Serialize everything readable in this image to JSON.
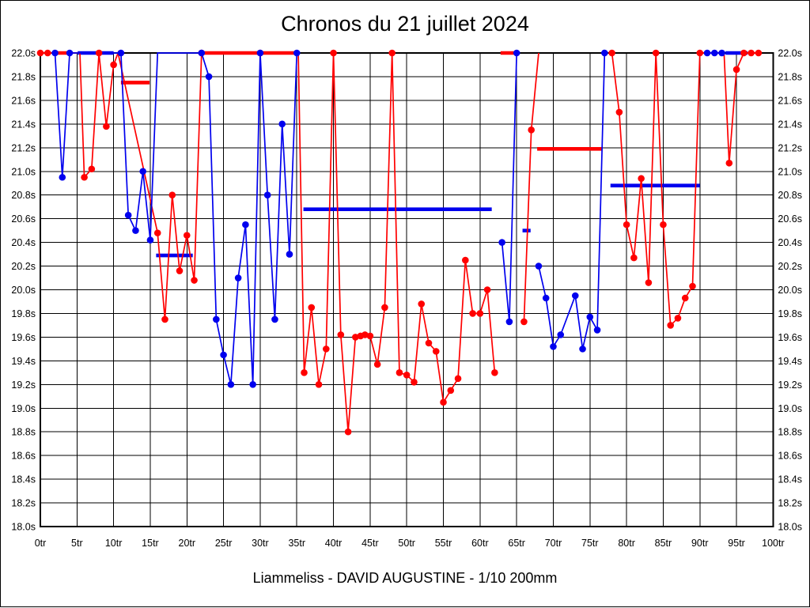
{
  "title": "Chronos du 21 juillet 2024",
  "footer": "Liammeliss - DAVID AUGUSTINE - 1/10 200mm",
  "chart_data": {
    "type": "line",
    "title": "Chronos du 21 juillet 2024",
    "xlabel": "laps (tr)",
    "ylabel": "seconds",
    "xlim": [
      0,
      100
    ],
    "ylim": [
      18.0,
      22.0
    ],
    "grid": true,
    "x_tick_labels": [
      "0tr",
      "5tr",
      "10tr",
      "15tr",
      "20tr",
      "25tr",
      "30tr",
      "35tr",
      "40tr",
      "45tr",
      "50tr",
      "55tr",
      "60tr",
      "65tr",
      "70tr",
      "75tr",
      "80tr",
      "85tr",
      "90tr",
      "95tr",
      "100tr"
    ],
    "y_tick_labels": [
      "22.0s",
      "21.8s",
      "21.6s",
      "21.4s",
      "21.2s",
      "21.0s",
      "20.8s",
      "20.6s",
      "20.4s",
      "20.2s",
      "20.0s",
      "19.8s",
      "19.6s",
      "19.4s",
      "19.2s",
      "19.0s",
      "18.8s",
      "18.6s",
      "18.4s",
      "18.2s",
      "18.0s"
    ],
    "point_format": "[lap_tr, seconds, dot_visible]",
    "series": [
      {
        "name": "red-driver",
        "color": "#ff0000",
        "segments": [
          [
            [
              0,
              22,
              1
            ],
            [
              1,
              22,
              1
            ],
            [
              5.4,
              22,
              0
            ],
            [
              6,
              20.95,
              1
            ],
            [
              7,
              21.02,
              1
            ],
            [
              8,
              22,
              1
            ],
            [
              9,
              21.38,
              1
            ],
            [
              10,
              21.9,
              1
            ],
            [
              10.6,
              22,
              0
            ],
            [
              16,
              20.48,
              1
            ],
            [
              17,
              19.75,
              1
            ],
            [
              18,
              20.8,
              1
            ],
            [
              19,
              20.16,
              1
            ],
            [
              20,
              20.46,
              1
            ],
            [
              21,
              20.08,
              1
            ],
            [
              22,
              22,
              1
            ],
            [
              30,
              22,
              1
            ],
            [
              35.2,
              22,
              0
            ],
            [
              36,
              19.3,
              1
            ],
            [
              37,
              19.85,
              1
            ],
            [
              38,
              19.2,
              1
            ],
            [
              39,
              19.5,
              1
            ],
            [
              40,
              22,
              1
            ],
            [
              41,
              19.62,
              1
            ],
            [
              42,
              18.8,
              1
            ],
            [
              43,
              19.6,
              1
            ],
            [
              43.7,
              19.61,
              1
            ],
            [
              44.3,
              19.62,
              1
            ],
            [
              45,
              19.61,
              1
            ],
            [
              46,
              19.37,
              1
            ],
            [
              47,
              19.85,
              1
            ],
            [
              48,
              22,
              1
            ],
            [
              49,
              19.3,
              1
            ],
            [
              50,
              19.28,
              1
            ],
            [
              51,
              19.22,
              1
            ],
            [
              52,
              19.88,
              1
            ],
            [
              53,
              19.55,
              1
            ],
            [
              54,
              19.48,
              1
            ],
            [
              55,
              19.05,
              1
            ],
            [
              56,
              19.15,
              1
            ],
            [
              57,
              19.25,
              1
            ],
            [
              58,
              20.25,
              1
            ],
            [
              59,
              19.8,
              1
            ],
            [
              60,
              19.8,
              1
            ],
            [
              61,
              20.0,
              1
            ],
            [
              62,
              19.3,
              1
            ]
          ],
          [
            [
              66,
              19.73,
              1
            ],
            [
              67,
              21.35,
              1
            ],
            [
              68,
              22,
              0
            ]
          ],
          [
            [
              78,
              22,
              1
            ],
            [
              79,
              21.5,
              1
            ],
            [
              80,
              20.55,
              1
            ],
            [
              81,
              20.27,
              1
            ],
            [
              82,
              20.94,
              1
            ],
            [
              83,
              20.06,
              1
            ],
            [
              84,
              22,
              1
            ],
            [
              85,
              20.55,
              1
            ],
            [
              86,
              19.7,
              1
            ],
            [
              87,
              19.76,
              1
            ],
            [
              88,
              19.93,
              1
            ],
            [
              89,
              20.03,
              1
            ],
            [
              90,
              22,
              1
            ],
            [
              93.3,
              22,
              0
            ],
            [
              94,
              21.07,
              1
            ],
            [
              95,
              21.86,
              1
            ],
            [
              96,
              22,
              1
            ],
            [
              97,
              22,
              1
            ],
            [
              98,
              22,
              1
            ]
          ]
        ]
      },
      {
        "name": "blue-driver",
        "color": "#0000ee",
        "segments": [
          [
            [
              2,
              22,
              1
            ],
            [
              3,
              20.95,
              1
            ],
            [
              4,
              22,
              1
            ],
            [
              11,
              22,
              1
            ],
            [
              12,
              20.63,
              1
            ],
            [
              13,
              20.5,
              1
            ],
            [
              14,
              21.0,
              1
            ],
            [
              15,
              20.42,
              1
            ],
            [
              16,
              22,
              0
            ],
            [
              22,
              22,
              1
            ],
            [
              23,
              21.8,
              1
            ],
            [
              24,
              19.75,
              1
            ],
            [
              25,
              19.45,
              1
            ],
            [
              26,
              19.2,
              1
            ],
            [
              27,
              20.1,
              1
            ],
            [
              28,
              20.55,
              1
            ],
            [
              29,
              19.2,
              1
            ],
            [
              30,
              22,
              1
            ],
            [
              31,
              20.8,
              1
            ],
            [
              32,
              19.75,
              1
            ],
            [
              33,
              21.4,
              1
            ],
            [
              34,
              20.3,
              1
            ],
            [
              35,
              22,
              1
            ]
          ],
          [
            [
              63,
              20.4,
              1
            ],
            [
              64,
              19.73,
              1
            ],
            [
              65,
              22,
              1
            ]
          ],
          [
            [
              68,
              20.2,
              1
            ],
            [
              69,
              19.93,
              1
            ],
            [
              70,
              19.52,
              1
            ],
            [
              71,
              19.62,
              1
            ],
            [
              73,
              19.95,
              1
            ],
            [
              74,
              19.5,
              1
            ],
            [
              75,
              19.77,
              1
            ],
            [
              76,
              19.66,
              1
            ],
            [
              77,
              22,
              1
            ]
          ],
          [
            [
              91,
              22,
              1
            ],
            [
              92,
              22,
              1
            ],
            [
              93,
              22,
              1
            ]
          ]
        ]
      }
    ],
    "average_bars": [
      {
        "series": "red-driver",
        "color": "#ff0000",
        "from": 1.8,
        "to": 3.85,
        "value": 22.0
      },
      {
        "series": "blue-driver",
        "color": "#0000ee",
        "from": 5.1,
        "to": 10.0,
        "value": 22.0
      },
      {
        "series": "red-driver",
        "color": "#ff0000",
        "from": 11.0,
        "to": 14.9,
        "value": 21.75
      },
      {
        "series": "blue-driver",
        "color": "#0000ee",
        "from": 15.8,
        "to": 20.8,
        "value": 20.29
      },
      {
        "series": "red-driver",
        "color": "#ff0000",
        "from": 21.9,
        "to": 34.7,
        "value": 22.0
      },
      {
        "series": "blue-driver",
        "color": "#0000ee",
        "from": 35.9,
        "to": 61.6,
        "value": 20.68
      },
      {
        "series": "red-driver",
        "color": "#ff0000",
        "from": 62.8,
        "to": 64.6,
        "value": 22.0
      },
      {
        "series": "blue-driver",
        "color": "#0000ee",
        "from": 65.8,
        "to": 66.9,
        "value": 20.5
      },
      {
        "series": "red-driver",
        "color": "#ff0000",
        "from": 67.8,
        "to": 76.6,
        "value": 21.19
      },
      {
        "series": "blue-driver",
        "color": "#0000ee",
        "from": 77.8,
        "to": 90.0,
        "value": 20.88
      },
      {
        "series": "blue-driver",
        "color": "#0000ee",
        "from": 93.5,
        "to": 96.5,
        "value": 22.0
      }
    ]
  }
}
